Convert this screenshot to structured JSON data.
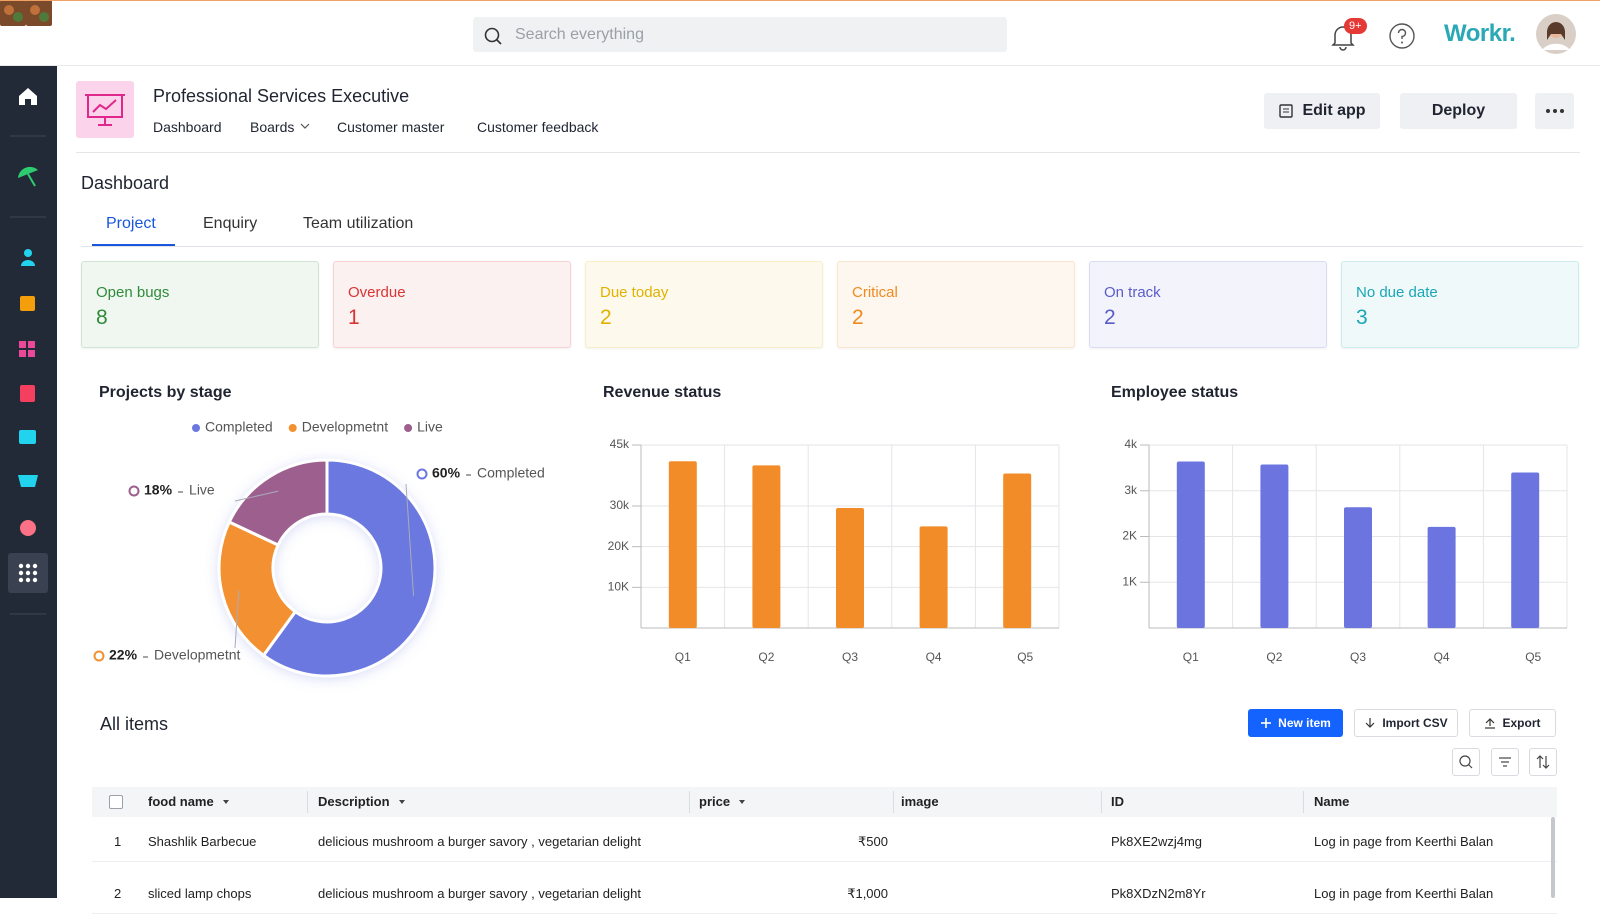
{
  "topbar": {
    "search_placeholder": "Search everything",
    "notification_count": "9+",
    "brand": "Workr."
  },
  "app": {
    "title": "Professional Services Executive",
    "nav": [
      "Dashboard",
      "Boards",
      "Customer master",
      "Customer feedback"
    ],
    "buttons": [
      "Edit app",
      "Deploy"
    ]
  },
  "dashboard": {
    "title": "Dashboard",
    "tabs": [
      "Project",
      "Enquiry",
      "Team utilization"
    ],
    "stats": [
      {
        "label": "Open bugs",
        "value": 8,
        "color": "#2e8b3a"
      },
      {
        "label": "Overdue",
        "value": 1,
        "color": "#d93434"
      },
      {
        "label": "Due today",
        "value": 2,
        "color": "#e2b100"
      },
      {
        "label": "Critical",
        "value": 2,
        "color": "#ef8a1f"
      },
      {
        "label": "On track",
        "value": 2,
        "color": "#5a5cc8"
      },
      {
        "label": "No due date",
        "value": 3,
        "color": "#1aa7b5"
      }
    ]
  },
  "chart_data": [
    {
      "type": "donut",
      "title": "Projects by stage",
      "categories": [
        "Completed",
        "Developmetnt",
        "Live"
      ],
      "values": [
        60,
        22,
        18
      ],
      "value_labels": [
        "60%",
        "22%",
        "18%"
      ],
      "colors": [
        "#6b78e0",
        "#f39130",
        "#9d5f8e"
      ],
      "legend": "top"
    },
    {
      "type": "bar",
      "title": "Revenue status",
      "categories": [
        "Q1",
        "Q2",
        "Q3",
        "Q4",
        "Q5"
      ],
      "values": [
        41000,
        40000,
        29500,
        25000,
        38000
      ],
      "color": "#f28c28",
      "ylim": [
        0,
        45000
      ],
      "yticks": [
        {
          "value": 10000,
          "label": "10K"
        },
        {
          "value": 20000,
          "label": "20K"
        },
        {
          "value": 30000,
          "label": "30k"
        },
        {
          "value": 45000,
          "label": "45k"
        }
      ],
      "grid": true
    },
    {
      "type": "bar",
      "title": "Employee status",
      "categories": [
        "Q1",
        "Q2",
        "Q3",
        "Q4",
        "Q5"
      ],
      "values": [
        3640,
        3575,
        2640,
        2210,
        3400
      ],
      "color": "#6b74df",
      "ylim": [
        0,
        4000
      ],
      "yticks": [
        {
          "value": 1000,
          "label": "1K"
        },
        {
          "value": 2000,
          "label": "2K"
        },
        {
          "value": 3000,
          "label": "3k"
        },
        {
          "value": 4000,
          "label": "4k"
        }
      ],
      "grid": true
    }
  ],
  "table": {
    "title": "All items",
    "actions": [
      "New item",
      "Import CSV",
      "Export"
    ],
    "columns": [
      "food name",
      "Description",
      "price",
      "image",
      "ID",
      "Name"
    ],
    "rows": [
      {
        "index": "1",
        "food_name": "Shashlik Barbecue",
        "description": "delicious mushroom a burger savory , vegetarian delight",
        "price": "₹500",
        "id": "Pk8XE2wzj4mg",
        "name": "Log in page from Keerthi Balan"
      },
      {
        "index": "2",
        "food_name": "sliced lamp chops",
        "description": "delicious mushroom a burger savory , vegetarian delight",
        "price": "₹1,000",
        "id": "Pk8XDzN2m8Yr",
        "name": "Log in page from Keerthi Balan"
      }
    ]
  }
}
